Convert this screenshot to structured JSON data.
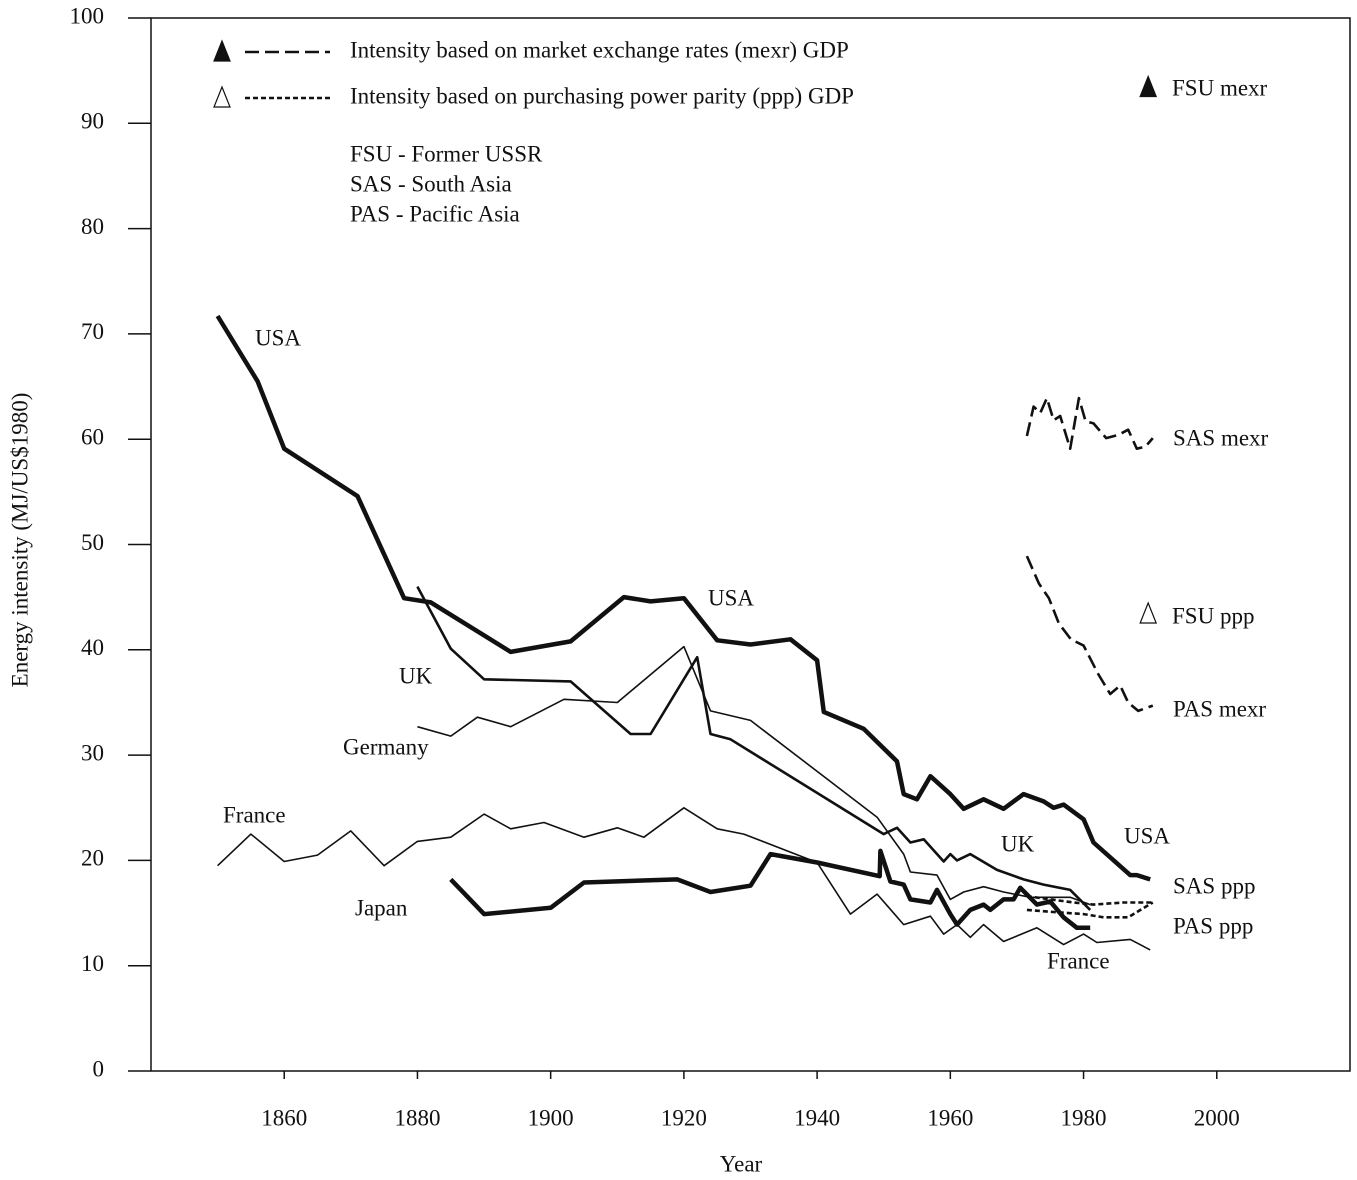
{
  "chart_data": {
    "type": "line",
    "xlabel": "Year",
    "ylabel": "Energy intensity (MJ/US$1980)",
    "xlim": [
      1840,
      2020
    ],
    "ylim": [
      0,
      100
    ],
    "xticks": [
      1860,
      1880,
      1900,
      1920,
      1940,
      1960,
      1980,
      2000
    ],
    "yticks": [
      0,
      10,
      20,
      30,
      40,
      50,
      60,
      70,
      80,
      90,
      100
    ],
    "legend": [
      {
        "label": "Intensity based on market exchange rates (mexr) GDP",
        "marker": "filled-triangle",
        "dash": "dashed"
      },
      {
        "label": "Intensity based on purchasing power parity (ppp) GDP",
        "marker": "open-triangle",
        "dash": "dotted"
      }
    ],
    "notes": [
      "FSU - Former USSR",
      "SAS - South Asia",
      "PAS - Pacific Asia"
    ],
    "series": [
      {
        "name": "USA",
        "color": "#111111",
        "dash": "solid",
        "weight": "thick",
        "x": [
          1850,
          1856,
          1860,
          1871,
          1878,
          1882,
          1894,
          1903,
          1911,
          1915,
          1920,
          1925,
          1930,
          1936,
          1940,
          1941,
          1947,
          1952,
          1953,
          1955,
          1957,
          1960,
          1962,
          1965,
          1968,
          1971,
          1974,
          1975.5,
          1977,
          1980,
          1981.5,
          1987,
          1988,
          1990
        ],
        "values": [
          71.7,
          65.5,
          59.1,
          54.6,
          44.9,
          44.5,
          39.8,
          40.8,
          45,
          44.6,
          44.9,
          40.9,
          40.5,
          41,
          39,
          34.1,
          32.5,
          29.4,
          26.3,
          25.8,
          28,
          26.3,
          24.9,
          25.8,
          24.9,
          26.3,
          25.6,
          25,
          25.3,
          23.9,
          21.7,
          18.6,
          18.6,
          18.2
        ]
      },
      {
        "name": "UK",
        "color": "#111111",
        "dash": "solid",
        "weight": "medium",
        "x": [
          1880,
          1885,
          1890,
          1903,
          1912,
          1915,
          1922,
          1924,
          1927,
          1950,
          1952,
          1954,
          1956,
          1959,
          1960,
          1961,
          1963,
          1967,
          1971,
          1974,
          1978,
          1981
        ],
        "values": [
          46,
          40.1,
          37.2,
          37,
          32,
          32,
          39.3,
          32,
          31.5,
          22.5,
          23.1,
          21.7,
          22,
          19.9,
          20.6,
          20,
          20.6,
          19.1,
          18.2,
          17.7,
          17.2,
          15.3
        ]
      },
      {
        "name": "Germany",
        "color": "#111111",
        "dash": "solid",
        "weight": "thin",
        "x": [
          1880,
          1885,
          1889,
          1894,
          1902,
          1910,
          1920,
          1924,
          1930,
          1949,
          1953,
          1954,
          1958,
          1960,
          1962,
          1965,
          1968,
          1972,
          1978,
          1981
        ],
        "values": [
          32.7,
          31.8,
          33.6,
          32.7,
          35.3,
          35,
          40.3,
          34.2,
          33.3,
          24.1,
          20.6,
          18.9,
          18.6,
          16.3,
          17,
          17.5,
          17,
          16.5,
          16.5,
          15.8
        ]
      },
      {
        "name": "France",
        "color": "#111111",
        "dash": "solid",
        "weight": "thin",
        "x": [
          1850,
          1855,
          1860,
          1865,
          1870,
          1875,
          1880,
          1885,
          1890,
          1894,
          1899,
          1905,
          1910,
          1914,
          1920,
          1925,
          1929,
          1940,
          1945,
          1949,
          1953,
          1957,
          1959,
          1961,
          1963,
          1965,
          1968,
          1973,
          1977,
          1980,
          1982,
          1987,
          1990
        ],
        "values": [
          19.5,
          22.5,
          19.9,
          20.5,
          22.8,
          19.5,
          21.8,
          22.2,
          24.4,
          23,
          23.6,
          22.2,
          23.1,
          22.2,
          25,
          23,
          22.5,
          19.8,
          14.9,
          16.8,
          13.9,
          14.7,
          13,
          13.9,
          12.7,
          13.9,
          12.3,
          13.6,
          12,
          13,
          12.2,
          12.5,
          11.5
        ]
      },
      {
        "name": "Japan",
        "color": "#111111",
        "dash": "solid",
        "weight": "thick",
        "x": [
          1885,
          1890,
          1900,
          1905,
          1919,
          1924,
          1930,
          1933,
          1940,
          1949.4,
          1949.5,
          1951,
          1953,
          1954,
          1957,
          1958,
          1960,
          1961,
          1963,
          1965,
          1966,
          1968,
          1969.5,
          1970.5,
          1973,
          1975,
          1977,
          1979,
          1981
        ],
        "values": [
          18.2,
          14.9,
          15.5,
          17.9,
          18.2,
          17,
          17.6,
          20.6,
          19.8,
          18.5,
          20.9,
          18,
          17.7,
          16.3,
          16,
          17.2,
          14.9,
          13.9,
          15.3,
          15.8,
          15.3,
          16.3,
          16.3,
          17.4,
          15.8,
          16.1,
          14.6,
          13.6,
          13.6
        ]
      },
      {
        "name": "SAS mexr",
        "color": "#111111",
        "dash": "dashed",
        "weight": "medium",
        "x": [
          1971.5,
          1972.5,
          1973.5,
          1974.5,
          1975.5,
          1976.5,
          1978,
          1979.3,
          1980.3,
          1981.5,
          1983.4,
          1985.2,
          1986.7,
          1988,
          1989.3,
          1990.4
        ],
        "values": [
          60.3,
          63.1,
          62.5,
          63.9,
          61.8,
          62.2,
          59.1,
          63.9,
          61.7,
          61.5,
          60.1,
          60.4,
          60.9,
          59.1,
          59.3,
          60.1
        ]
      },
      {
        "name": "PAS mexr",
        "color": "#111111",
        "dash": "dashed",
        "weight": "medium",
        "x": [
          1971.5,
          1973.3,
          1974.8,
          1976.3,
          1978.1,
          1980,
          1982.2,
          1984,
          1985.5,
          1986.7,
          1988.2,
          1990.4
        ],
        "values": [
          48.9,
          46.3,
          44.9,
          42.5,
          41,
          40.4,
          37.7,
          35.8,
          36.6,
          35,
          34.2,
          34.7
        ]
      },
      {
        "name": "SAS ppp",
        "color": "#111111",
        "dash": "dotted",
        "weight": "medium",
        "x": [
          1971.5,
          1978.5,
          1981.5,
          1986,
          1990.4
        ],
        "values": [
          16.6,
          16,
          15.8,
          16,
          16
        ]
      },
      {
        "name": "PAS ppp",
        "color": "#111111",
        "dash": "dotted",
        "weight": "medium",
        "x": [
          1971.5,
          1975.5,
          1980,
          1983,
          1986.7,
          1990.4
        ],
        "values": [
          15.3,
          15.1,
          14.9,
          14.6,
          14.6,
          16
        ]
      },
      {
        "name": "FSU mexr",
        "color": "#111111",
        "marker": "filled-triangle",
        "x": [
          1990
        ],
        "values": [
          93.4
        ]
      },
      {
        "name": "FSU ppp",
        "color": "#111111",
        "marker": "open-triangle",
        "x": [
          1990
        ],
        "values": [
          43.4
        ]
      }
    ]
  }
}
